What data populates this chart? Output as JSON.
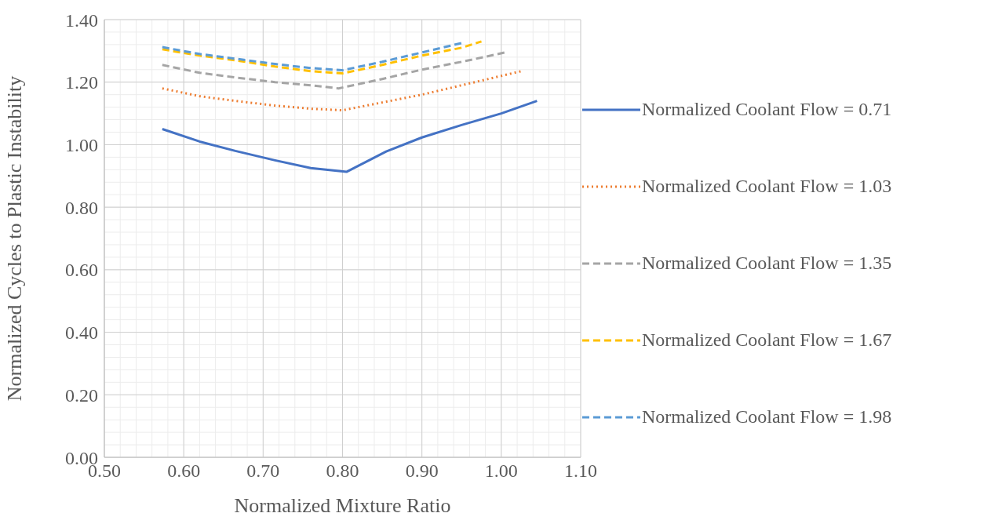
{
  "chart_data": {
    "type": "line",
    "xlabel": "Normalized Mixture Ratio",
    "ylabel": "Normalized Cycles to Plastic Instability",
    "xlim": [
      0.5,
      1.1
    ],
    "xticks": [
      {
        "value": 0.5,
        "label": "0.50"
      },
      {
        "value": 0.6,
        "label": "0.60"
      },
      {
        "value": 0.7,
        "label": "0.70"
      },
      {
        "value": 0.8,
        "label": "0.80"
      },
      {
        "value": 0.9,
        "label": "0.90"
      },
      {
        "value": 1.0,
        "label": "1.00"
      },
      {
        "value": 1.1,
        "label": "1.10"
      }
    ],
    "ylim": [
      0,
      1.4
    ],
    "yticks": [
      {
        "value": 0,
        "label": "0.00"
      },
      {
        "value": 0.2,
        "label": "0.20"
      },
      {
        "value": 0.4,
        "label": "0.40"
      },
      {
        "value": 0.6,
        "label": "0.60"
      },
      {
        "value": 0.8,
        "label": "0.80"
      },
      {
        "value": 1.0,
        "label": "1.00"
      },
      {
        "value": 1.2,
        "label": "1.20"
      },
      {
        "value": 1.4,
        "label": "1.40"
      }
    ],
    "grid": true,
    "legend": "right",
    "marker": "none",
    "series": [
      {
        "name": "Normalized Coolant Flow = 0.71",
        "color": "#4472c4",
        "line_style": "solid",
        "x": [
          0.573,
          0.62,
          0.665,
          0.715,
          0.76,
          0.805,
          0.855,
          0.9,
          0.95,
          1.0,
          1.045
        ],
        "values": [
          1.05,
          1.01,
          0.98,
          0.95,
          0.925,
          0.913,
          0.978,
          1.023,
          1.063,
          1.1,
          1.14
        ]
      },
      {
        "name": "Normalized Coolant Flow = 1.03",
        "color": "#ed7d31",
        "line_style": "dotted",
        "x": [
          0.573,
          0.62,
          0.665,
          0.715,
          0.76,
          0.8,
          0.85,
          0.9,
          0.95,
          1.0,
          1.025
        ],
        "values": [
          1.18,
          1.155,
          1.14,
          1.125,
          1.115,
          1.11,
          1.135,
          1.16,
          1.19,
          1.22,
          1.235
        ]
      },
      {
        "name": "Normalized Coolant Flow = 1.35",
        "color": "#a5a5a5",
        "line_style": "dashed",
        "x": [
          0.573,
          0.62,
          0.665,
          0.715,
          0.76,
          0.795,
          0.85,
          0.9,
          0.95,
          1.005
        ],
        "values": [
          1.255,
          1.23,
          1.215,
          1.2,
          1.19,
          1.18,
          1.21,
          1.24,
          1.265,
          1.295
        ]
      },
      {
        "name": "Normalized Coolant Flow = 1.67",
        "color": "#ffc000",
        "line_style": "dashed",
        "x": [
          0.573,
          0.62,
          0.665,
          0.715,
          0.76,
          0.8,
          0.85,
          0.9,
          0.95,
          0.975
        ],
        "values": [
          1.305,
          1.285,
          1.27,
          1.25,
          1.235,
          1.228,
          1.255,
          1.285,
          1.31,
          1.33
        ]
      },
      {
        "name": "Normalized Coolant Flow = 1.98",
        "color": "#5b9bd5",
        "line_style": "dashed",
        "x": [
          0.573,
          0.62,
          0.665,
          0.715,
          0.76,
          0.8,
          0.85,
          0.9,
          0.95
        ],
        "values": [
          1.312,
          1.29,
          1.275,
          1.258,
          1.245,
          1.238,
          1.265,
          1.295,
          1.325
        ]
      }
    ]
  }
}
